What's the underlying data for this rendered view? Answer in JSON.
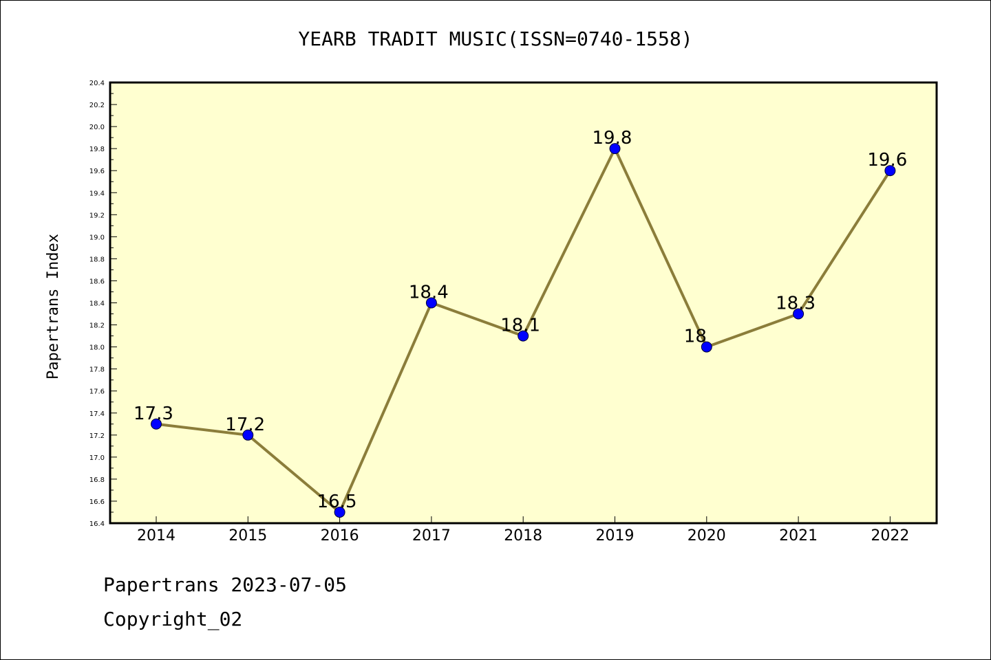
{
  "colors": {
    "plot_background": "#ffffd0",
    "line": "#8b7d3a",
    "marker": "#0000ff",
    "marker_edge": "#000033"
  },
  "chart_data": {
    "type": "line",
    "title": "YEARB TRADIT MUSIC(ISSN=0740-1558)",
    "xlabel": "",
    "ylabel": "Papertrans Index",
    "categories": [
      "2014",
      "2015",
      "2016",
      "2017",
      "2018",
      "2019",
      "2020",
      "2021",
      "2022"
    ],
    "values": [
      17.3,
      17.2,
      16.5,
      18.4,
      18.1,
      19.8,
      18.0,
      18.3,
      19.6
    ],
    "data_labels": [
      "17.3",
      "17.2",
      "16.5",
      "18.4",
      "18.1",
      "19.8",
      "18",
      "18.3",
      "19.6"
    ],
    "ylim": [
      16.4,
      20.4
    ],
    "yticks": [
      "16.4",
      "16.6",
      "16.8",
      "17.0",
      "17.2",
      "17.4",
      "17.6",
      "17.8",
      "18.0",
      "18.2",
      "18.4",
      "18.6",
      "18.8",
      "19.0",
      "19.2",
      "19.4",
      "19.6",
      "19.8",
      "20.0",
      "20.2",
      "20.4"
    ],
    "grid": false,
    "legend": "none"
  },
  "footer": {
    "line1": "Papertrans 2023-07-05",
    "line2": "Copyright_02"
  }
}
